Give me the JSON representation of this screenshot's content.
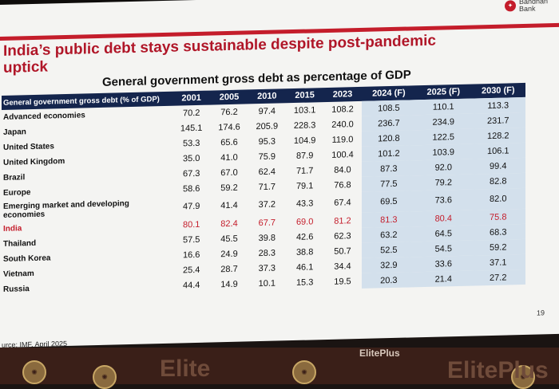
{
  "slide": {
    "logo_text": "Bandhan Bank",
    "title": "India’s public debt stays sustainable despite post-pandemic uptick",
    "subtitle": "General government gross debt as percentage of GDP",
    "page_number": "19",
    "source": "urce: IMF, April 2025"
  },
  "table": {
    "header_label": "General government gross debt (% of GDP)",
    "columns": [
      "2001",
      "2005",
      "2010",
      "2015",
      "2023",
      "2024 (F)",
      "2025 (F)",
      "2030 (F)"
    ],
    "rows": [
      {
        "label": "Advanced economies",
        "values": [
          "70.2",
          "76.2",
          "97.4",
          "103.1",
          "108.2",
          "108.5",
          "110.1",
          "113.3"
        ]
      },
      {
        "label": "Japan",
        "values": [
          "145.1",
          "174.6",
          "205.9",
          "228.3",
          "240.0",
          "236.7",
          "234.9",
          "231.7"
        ]
      },
      {
        "label": "United States",
        "values": [
          "53.3",
          "65.6",
          "95.3",
          "104.9",
          "119.0",
          "120.8",
          "122.5",
          "128.2"
        ]
      },
      {
        "label": "United Kingdom",
        "values": [
          "35.0",
          "41.0",
          "75.9",
          "87.9",
          "100.4",
          "101.2",
          "103.9",
          "106.1"
        ]
      },
      {
        "label": "Brazil",
        "values": [
          "67.3",
          "67.0",
          "62.4",
          "71.7",
          "84.0",
          "87.3",
          "92.0",
          "99.4"
        ]
      },
      {
        "label": "Europe",
        "values": [
          "58.6",
          "59.2",
          "71.7",
          "79.1",
          "76.8",
          "77.5",
          "79.2",
          "82.8"
        ]
      },
      {
        "label": "Emerging market and developing economies",
        "values": [
          "47.9",
          "41.4",
          "37.2",
          "43.3",
          "67.4",
          "69.5",
          "73.6",
          "82.0"
        ]
      },
      {
        "label": "India",
        "values": [
          "80.1",
          "82.4",
          "67.7",
          "69.0",
          "81.2",
          "81.3",
          "80.4",
          "75.8"
        ]
      },
      {
        "label": "Thailand",
        "values": [
          "57.5",
          "45.5",
          "39.8",
          "42.6",
          "62.3",
          "63.2",
          "64.5",
          "68.3"
        ]
      },
      {
        "label": "South Korea",
        "values": [
          "16.6",
          "24.9",
          "28.3",
          "38.8",
          "50.7",
          "52.5",
          "54.5",
          "59.2"
        ]
      },
      {
        "label": "Vietnam",
        "values": [
          "25.4",
          "28.7",
          "37.3",
          "46.1",
          "34.4",
          "32.9",
          "33.6",
          "37.1"
        ]
      },
      {
        "label": "Russia",
        "values": [
          "44.4",
          "14.9",
          "10.1",
          "15.3",
          "19.5",
          "20.3",
          "21.4",
          "27.2"
        ]
      }
    ]
  },
  "stage": {
    "brand_left": "Elite",
    "brand_center": "ElitePlus",
    "brand_right": "ElitePlus"
  }
}
